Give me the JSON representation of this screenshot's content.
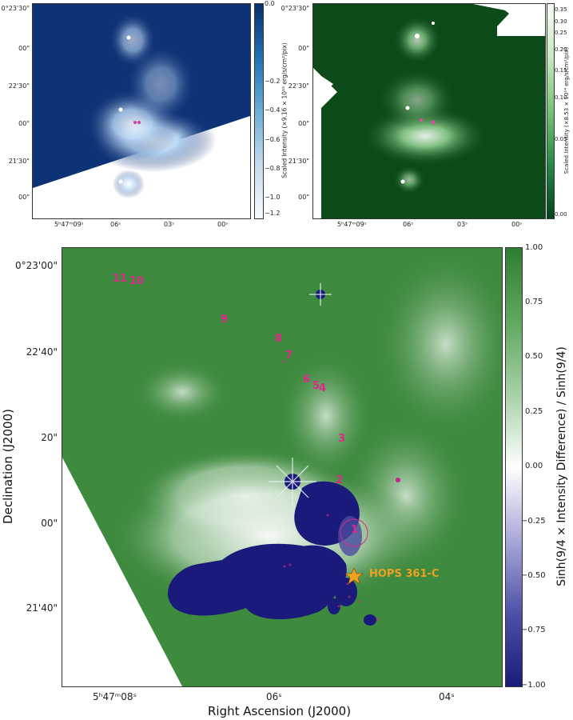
{
  "panel_blue": {
    "colorbar_label": "Scaled Intensity (×9.16 × 10¹⁵ erg/s/cm²/pix)",
    "colorbar_ticks": [
      "0.0",
      "−0.2",
      "−0.4",
      "−0.6",
      "−0.8",
      "−1.0",
      "−1.2"
    ],
    "dec_ticks": [
      "0°23'30\"",
      "00\"",
      "22'30\"",
      "00\"",
      "21'30\"",
      "00\""
    ],
    "ra_ticks": [
      "5ʰ47ᵐ09ˢ",
      "06ˢ",
      "03ˢ",
      "00ˢ"
    ],
    "colors": {
      "deep": "#0b2a6e",
      "mid": "#2e6bb8",
      "bright": "#ffffff"
    }
  },
  "panel_green": {
    "colorbar_label": "Scaled Intensity (×8.53 × 10¹⁴ erg/s/cm²/pix)",
    "colorbar_ticks": [
      "0.35",
      "0.30",
      "0.25",
      "0.20",
      "0.15",
      "0.10",
      "0.05",
      "0.00"
    ],
    "dec_ticks": [
      "0°23'30\"",
      "00\"",
      "22'30\"",
      "00\"",
      "21'30\"",
      "00\""
    ],
    "ra_ticks": [
      "5ʰ47ᵐ09ˢ",
      "06ˢ",
      "03ˢ",
      "00ˢ"
    ],
    "colors": {
      "deep": "#0c4a1a",
      "bright": "#ffffff"
    }
  },
  "panel_main": {
    "x_label": "Right Ascension (J2000)",
    "y_label": "Declination (J2000)",
    "colorbar_label": "Sinh(9/4 × Intensity Difference) / Sinh(9/4)",
    "colorbar_ticks": [
      "1.00",
      "0.75",
      "0.50",
      "0.25",
      "0.00",
      "−0.25",
      "−0.50",
      "−0.75",
      "−1.00"
    ],
    "dec_ticks": [
      "0°23'00\"",
      "22'40\"",
      "20\"",
      "00\"",
      "21'40\""
    ],
    "ra_ticks": [
      "5ʰ47ᵐ08ˢ",
      "06ˢ",
      "04ˢ"
    ],
    "source_labels": [
      "11",
      "10",
      "9",
      "8",
      "7",
      "6",
      "5",
      "4",
      "3",
      "2",
      "1"
    ],
    "hops_label": "HOPS 361-C",
    "colors": {
      "green": "#3e8a3e",
      "navy": "#1a1a7a",
      "magenta": "#e0288a",
      "star": "#f0a020"
    }
  }
}
